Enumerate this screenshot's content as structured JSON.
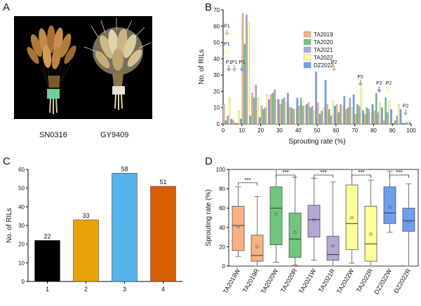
{
  "panels": {
    "a": "A",
    "b": "B",
    "c": "C",
    "d": "D"
  },
  "photo_labels": {
    "left": "SN0316",
    "right": "GY9409"
  },
  "chart_data": [
    {
      "id": "B",
      "type": "bar",
      "xlabel": "Sprouting rate (%)",
      "ylabel": "No. of RILs",
      "xlim": [
        0,
        100
      ],
      "ylim": [
        0,
        70
      ],
      "xticks": [
        0,
        10,
        20,
        30,
        40,
        50,
        60,
        70,
        80,
        90,
        100
      ],
      "yticks": [
        0,
        10,
        20,
        30,
        40,
        50,
        60,
        70
      ],
      "bins": [
        0,
        5,
        10,
        15,
        20,
        25,
        30,
        35,
        40,
        45,
        50,
        55,
        60,
        65,
        70,
        75,
        80,
        85,
        90,
        95
      ],
      "series": [
        {
          "name": "TA2019",
          "color": "#F7B183",
          "values": [
            12,
            2,
            68,
            19,
            11,
            18,
            12,
            10,
            11,
            13,
            13,
            12,
            12,
            9,
            6,
            6,
            8,
            2,
            0,
            0
          ]
        },
        {
          "name": "TA2020",
          "color": "#70C67C",
          "values": [
            2,
            0,
            49,
            16,
            9,
            19,
            15,
            10,
            16,
            10,
            6,
            9,
            7,
            10,
            12,
            10,
            19,
            16,
            2,
            0
          ]
        },
        {
          "name": "TA2021",
          "color": "#B4A7D6",
          "values": [
            5,
            0,
            67,
            24,
            10,
            21,
            16,
            9,
            11,
            11,
            8,
            5,
            12,
            16,
            11,
            9,
            7,
            7,
            5,
            1
          ]
        },
        {
          "name": "TA2022",
          "color": "#FFFF99",
          "values": [
            16,
            8,
            62,
            16,
            18,
            15,
            13,
            9,
            11,
            8,
            10,
            14,
            11,
            10,
            22,
            7,
            13,
            14,
            12,
            1
          ]
        },
        {
          "name": "DZ2022",
          "color": "#6E9FEF",
          "values": [
            3,
            3,
            5,
            4,
            15,
            15,
            19,
            16,
            12,
            32,
            27,
            11,
            17,
            18,
            8,
            12,
            10,
            9,
            9,
            1
          ]
        }
      ],
      "annotations": [
        {
          "text": "P1",
          "x": 2,
          "y": 59,
          "color": "#F7B183"
        },
        {
          "text": "P1",
          "x": 2,
          "y": 48,
          "color": "#FFFF99"
        },
        {
          "text": "P1",
          "x": 3,
          "y": 37,
          "color": "#70C67C"
        },
        {
          "text": "P1",
          "x": 6,
          "y": 37,
          "color": "#B4A7D6"
        },
        {
          "text": "P1",
          "x": 10,
          "y": 37,
          "color": "#6E9FEF"
        },
        {
          "text": "P2",
          "x": 59,
          "y": 37,
          "color": "#F7B183"
        },
        {
          "text": "P2",
          "x": 73,
          "y": 28,
          "color": "#70C67C"
        },
        {
          "text": "P2",
          "x": 83,
          "y": 24,
          "color": "#6E9FEF"
        },
        {
          "text": "P2",
          "x": 88,
          "y": 24,
          "color": "#FFFF99"
        },
        {
          "text": "P2",
          "x": 97,
          "y": 10,
          "color": "#B4A7D6"
        }
      ]
    },
    {
      "id": "C",
      "type": "bar",
      "xlabel": "",
      "ylabel": "No. of RILs",
      "categories": [
        "1",
        "2",
        "3",
        "4"
      ],
      "values": [
        22,
        33,
        58,
        51
      ],
      "colors": [
        "#000000",
        "#E8A20C",
        "#55B4EA",
        "#D95F02"
      ],
      "ylim": [
        0,
        60
      ],
      "yticks": [
        0,
        10,
        20,
        30,
        40,
        50,
        60
      ]
    },
    {
      "id": "D",
      "type": "box",
      "ylabel": "Sprouting rate (%)",
      "ylim": [
        0,
        100
      ],
      "yticks": [
        0,
        20,
        40,
        60,
        80,
        100
      ],
      "significance": "***",
      "groups": [
        {
          "label": "TA2019W",
          "color": "#F7B183",
          "min": 10,
          "q1": 16,
          "median": 42,
          "q3": 62,
          "max": 82,
          "mean": 41
        },
        {
          "label": "TA2019R",
          "color": "#F7B183",
          "min": 0,
          "q1": 5,
          "median": 11,
          "q3": 32,
          "max": 72,
          "mean": 20
        },
        {
          "label": "TA2020W",
          "color": "#70C67C",
          "min": 4,
          "q1": 22,
          "median": 60,
          "q3": 82,
          "max": 100,
          "mean": 54
        },
        {
          "label": "TA2020R",
          "color": "#70C67C",
          "min": 1,
          "q1": 9,
          "median": 28,
          "q3": 55,
          "max": 92,
          "mean": 35
        },
        {
          "label": "TA2021W",
          "color": "#B4A7D6",
          "min": 6,
          "q1": 30,
          "median": 48,
          "q3": 63,
          "max": 91,
          "mean": 48
        },
        {
          "label": "TA2021R",
          "color": "#B4A7D6",
          "min": 0,
          "q1": 6,
          "median": 12,
          "q3": 31,
          "max": 87,
          "mean": 21
        },
        {
          "label": "TA2022W",
          "color": "#FFFF99",
          "min": 3,
          "q1": 17,
          "median": 44,
          "q3": 84,
          "max": 100,
          "mean": 50
        },
        {
          "label": "TA2022R",
          "color": "#FFFF99",
          "min": 0,
          "q1": 5,
          "median": 23,
          "q3": 62,
          "max": 89,
          "mean": 33
        },
        {
          "label": "DZ2022W",
          "color": "#6E9FEF",
          "min": 35,
          "q1": 44,
          "median": 55,
          "q3": 82,
          "max": 98,
          "mean": 61
        },
        {
          "label": "DZ2022R",
          "color": "#6E9FEF",
          "min": 0,
          "q1": 36,
          "median": 47,
          "q3": 60,
          "max": 85,
          "mean": 46
        }
      ]
    }
  ]
}
